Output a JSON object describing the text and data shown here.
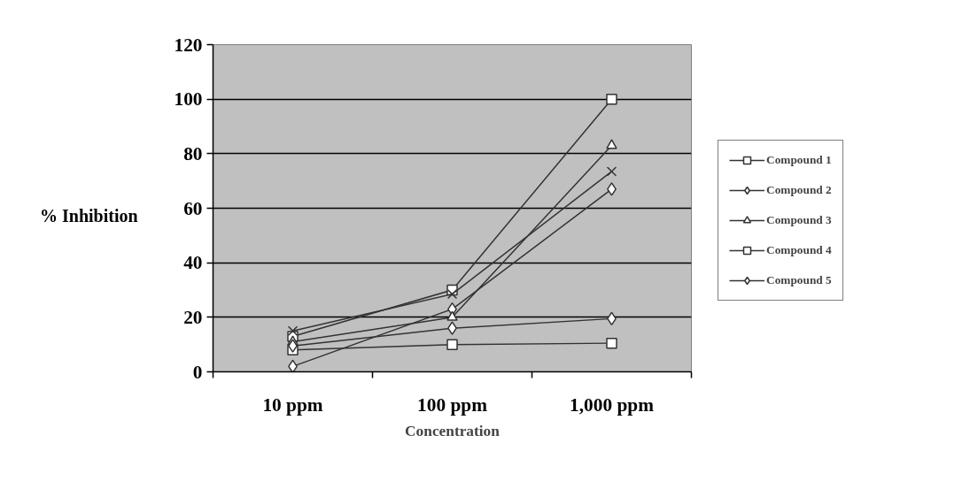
{
  "chart_data": {
    "type": "line",
    "xlabel": "Concentration",
    "ylabel": "% Inhibition",
    "categories": [
      "10 ppm",
      "100 ppm",
      "1,000 ppm"
    ],
    "ylim": [
      0,
      120
    ],
    "yticks": [
      0,
      20,
      40,
      60,
      80,
      100,
      120
    ],
    "grid": "y",
    "legend": "right",
    "line_style": "solid",
    "series": [
      {
        "name": "Compound 1",
        "color": "#333333",
        "marker": "square",
        "values": [
          13,
          30,
          100
        ]
      },
      {
        "name": "Compound 2",
        "color": "#333333",
        "marker": "diamond",
        "values": [
          2,
          23,
          67
        ]
      },
      {
        "name": "Compound 3",
        "color": "#333333",
        "marker": "triangle",
        "values": [
          11,
          20,
          83
        ]
      },
      {
        "name": "Compound 4",
        "color": "#333333",
        "marker": "square",
        "values": [
          8,
          10,
          10.5
        ]
      },
      {
        "name": "Compound 5",
        "color": "#333333",
        "marker": "diamond",
        "values": [
          9.5,
          16,
          19.5
        ]
      },
      {
        "color": "#333333",
        "marker": "cross",
        "values": [
          15,
          28.5,
          73.5
        ]
      }
    ]
  }
}
